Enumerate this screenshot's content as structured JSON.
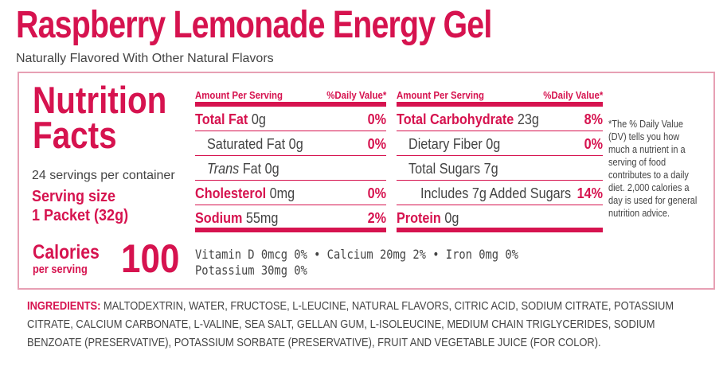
{
  "product": {
    "title": "Raspberry Lemonade Energy Gel",
    "subtitle": "Naturally Flavored With Other Natural Flavors"
  },
  "facts": {
    "heading_line1": "Nutrition",
    "heading_line2": "Facts",
    "servings": "24 servings per container",
    "serving_size_label": "Serving size",
    "serving_size_value": "1 Packet (32g)",
    "calories_label": "Calories",
    "calories_sub": "per serving",
    "calories_value": "100"
  },
  "headers": {
    "amount": "Amount Per Serving",
    "dv": "%Daily Value*"
  },
  "left_rows": [
    {
      "name": "Total Fat",
      "amount": "0g",
      "dv": "0%"
    },
    {
      "name": "Saturated Fat",
      "amount": "0g",
      "dv": "0%"
    },
    {
      "name": "Trans",
      "suffix": "Fat",
      "amount": "0g",
      "dv": ""
    },
    {
      "name": "Cholesterol",
      "amount": "0mg",
      "dv": "0%"
    },
    {
      "name": "Sodium",
      "amount": "55mg",
      "dv": "2%"
    }
  ],
  "right_rows": [
    {
      "name": "Total Carbohydrate",
      "amount": "23g",
      "dv": "8%"
    },
    {
      "name": "Dietary Fiber",
      "amount": "0g",
      "dv": "0%"
    },
    {
      "name": "Total Sugars",
      "amount": "7g",
      "dv": ""
    },
    {
      "name": "Includes 7g Added Sugars",
      "amount": "",
      "dv": "14%"
    },
    {
      "name": "Protein",
      "amount": "0g",
      "dv": ""
    }
  ],
  "vitamins": {
    "line1": "Vitamin D 0mcg 0% • Calcium 20mg 2% • Iron 0mg 0%",
    "line2": "Potassium 30mg 0%"
  },
  "dv_note": "*The % Daily Value (DV) tells you how much a nutrient in a serving of food contributes to a daily diet. 2,000 calories a day is used for general nutrition advice.",
  "ingredients": {
    "label": "INGREDIENTS:",
    "text": "MALTODEXTRIN, WATER, FRUCTOSE, L-LEUCINE, NATURAL FLAVORS, CITRIC ACID, SODIUM CITRATE, POTASSIUM CITRATE, CALCIUM CARBONATE, L-VALINE, SEA SALT, GELLAN GUM, L-ISOLEUCINE, MEDIUM CHAIN TRIGLYCERIDES, SODIUM BENZOATE (PRESERVATIVE), POTASSIUM SORBATE (PRESERVATIVE), FRUIT AND VEGETABLE JUICE (FOR COLOR)."
  },
  "colors": {
    "brand": "#d6134f",
    "text": "#444444",
    "border": "#e7a0b4"
  }
}
